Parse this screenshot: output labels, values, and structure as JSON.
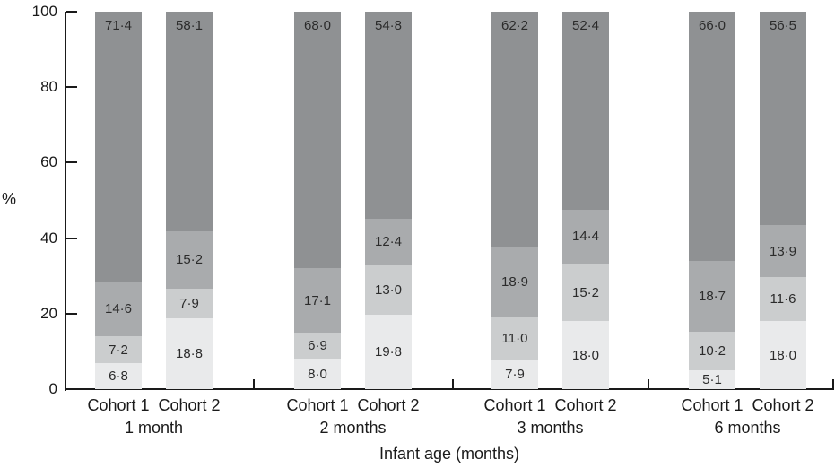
{
  "chart_data": {
    "type": "stacked_bar",
    "title": "",
    "xlabel": "Infant age (months)",
    "ylabel": "%",
    "ylim": [
      0,
      100
    ],
    "yticks": [
      0,
      20,
      40,
      60,
      80,
      100
    ],
    "grid": false,
    "legend": "none",
    "decimal_separator_style": "middle-dot",
    "segment_colors": [
      "#e9eaeb",
      "#cbcdce",
      "#a9abad",
      "#8f9193"
    ],
    "axis_color": "#1a1a1a",
    "groups": [
      {
        "age_label": "1 month",
        "bars": [
          {
            "name": "Cohort 1",
            "segments": [
              {
                "value": 6.8,
                "label": "6·8"
              },
              {
                "value": 7.2,
                "label": "7·2"
              },
              {
                "value": 14.6,
                "label": "14·6"
              },
              {
                "value": 71.4,
                "label": "71·4"
              }
            ]
          },
          {
            "name": "Cohort 2",
            "segments": [
              {
                "value": 18.8,
                "label": "18·8"
              },
              {
                "value": 7.9,
                "label": "7·9"
              },
              {
                "value": 15.2,
                "label": "15·2"
              },
              {
                "value": 58.1,
                "label": "58·1"
              }
            ]
          }
        ]
      },
      {
        "age_label": "2 months",
        "bars": [
          {
            "name": "Cohort 1",
            "segments": [
              {
                "value": 8.0,
                "label": "8·0"
              },
              {
                "value": 6.9,
                "label": "6·9"
              },
              {
                "value": 17.1,
                "label": "17·1"
              },
              {
                "value": 68.0,
                "label": "68·0"
              }
            ]
          },
          {
            "name": "Cohort 2",
            "segments": [
              {
                "value": 19.8,
                "label": "19·8"
              },
              {
                "value": 13.0,
                "label": "13·0"
              },
              {
                "value": 12.4,
                "label": "12·4"
              },
              {
                "value": 54.8,
                "label": "54·8"
              }
            ]
          }
        ]
      },
      {
        "age_label": "3 months",
        "bars": [
          {
            "name": "Cohort 1",
            "segments": [
              {
                "value": 7.9,
                "label": "7·9"
              },
              {
                "value": 11.0,
                "label": "11·0"
              },
              {
                "value": 18.9,
                "label": "18·9"
              },
              {
                "value": 62.2,
                "label": "62·2"
              }
            ]
          },
          {
            "name": "Cohort 2",
            "segments": [
              {
                "value": 18.0,
                "label": "18·0"
              },
              {
                "value": 15.2,
                "label": "15·2"
              },
              {
                "value": 14.4,
                "label": "14·4"
              },
              {
                "value": 52.4,
                "label": "52·4"
              }
            ]
          }
        ]
      },
      {
        "age_label": "6 months",
        "bars": [
          {
            "name": "Cohort 1",
            "segments": [
              {
                "value": 5.1,
                "label": "5·1"
              },
              {
                "value": 10.2,
                "label": "10·2"
              },
              {
                "value": 18.7,
                "label": "18·7"
              },
              {
                "value": 66.0,
                "label": "66·0"
              }
            ]
          },
          {
            "name": "Cohort 2",
            "segments": [
              {
                "value": 18.0,
                "label": "18·0"
              },
              {
                "value": 11.6,
                "label": "11·6"
              },
              {
                "value": 13.9,
                "label": "13·9"
              },
              {
                "value": 56.5,
                "label": "56·5"
              }
            ]
          }
        ]
      }
    ]
  }
}
